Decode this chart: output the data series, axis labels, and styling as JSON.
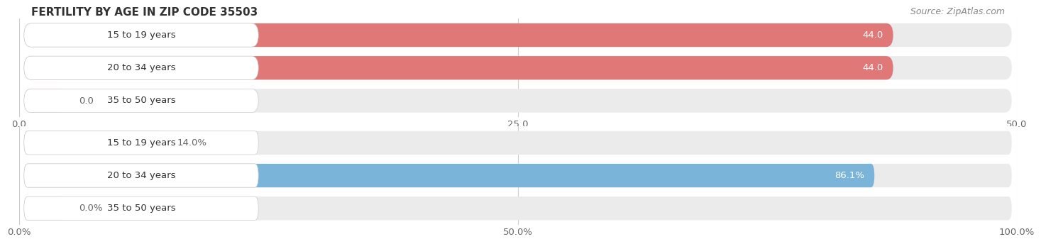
{
  "title": "FERTILITY BY AGE IN ZIP CODE 35503",
  "source": "Source: ZipAtlas.com",
  "top_chart": {
    "categories": [
      "15 to 19 years",
      "20 to 34 years",
      "35 to 50 years"
    ],
    "values": [
      44.0,
      44.0,
      0.0
    ],
    "bar_color": "#E07878",
    "label_pill_color": "#FFFFFF",
    "small_bar_color": "#EAA0A0",
    "bg_color": "#EBEBEB",
    "xlim": [
      0,
      50
    ],
    "xticks": [
      0.0,
      25.0,
      50.0
    ],
    "value_labels": [
      "44.0",
      "44.0",
      "0.0"
    ],
    "value_label_inside": [
      true,
      true,
      false
    ]
  },
  "bottom_chart": {
    "categories": [
      "15 to 19 years",
      "20 to 34 years",
      "35 to 50 years"
    ],
    "values": [
      14.0,
      86.1,
      0.0
    ],
    "bar_color": "#7AB4D8",
    "label_pill_color": "#FFFFFF",
    "small_bar_color": "#A8C8E8",
    "bg_color": "#EBEBEB",
    "xlim": [
      0,
      100
    ],
    "xticks": [
      0.0,
      50.0,
      100.0
    ],
    "value_labels": [
      "14.0%",
      "86.1%",
      "0.0%"
    ],
    "value_label_inside": [
      false,
      true,
      false
    ]
  },
  "bar_height": 0.72,
  "label_fontsize": 9.5,
  "tick_fontsize": 9.5,
  "title_fontsize": 11,
  "source_fontsize": 9,
  "bar_label_color_inside": "#FFFFFF",
  "bar_label_color_outside": "#666666",
  "category_label_color": "#333333",
  "background_color": "#FFFFFF",
  "panel_bg": "#EBEBEB"
}
